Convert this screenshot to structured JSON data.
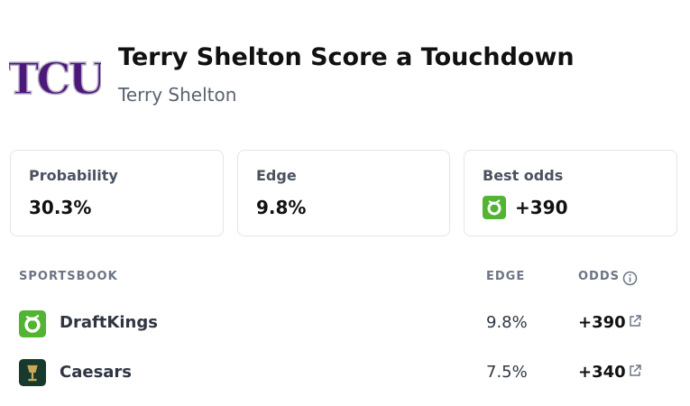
{
  "header": {
    "logo": "TCU",
    "title": "Terry Shelton Score a Touchdown",
    "subtitle": "Terry Shelton"
  },
  "stats": [
    {
      "label": "Probability",
      "value": "30.3%"
    },
    {
      "label": "Edge",
      "value": "9.8%"
    },
    {
      "label": "Best odds",
      "value": "+390"
    }
  ],
  "table": {
    "columns": [
      "SPORTSBOOK",
      "EDGE",
      "ODDS"
    ],
    "rows": [
      [
        "DraftKings",
        "9.8%",
        "+390"
      ],
      [
        "Caesars",
        "7.5%",
        "+340"
      ]
    ]
  }
}
